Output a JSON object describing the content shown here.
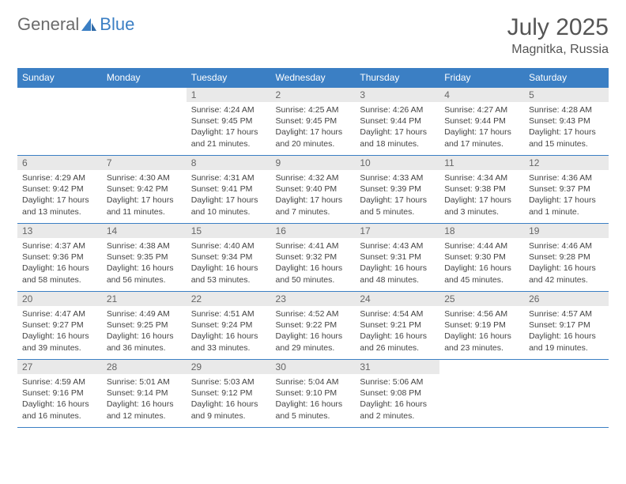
{
  "brand": {
    "part1": "General",
    "part2": "Blue"
  },
  "title": "July 2025",
  "location": "Magnitka, Russia",
  "colors": {
    "header_bg": "#3b7fc4",
    "header_text": "#ffffff",
    "daynum_bg": "#e9e9e9",
    "daynum_text": "#666666",
    "body_text": "#444444",
    "border": "#3b7fc4",
    "page_bg": "#ffffff",
    "title_color": "#555555"
  },
  "typography": {
    "title_fontsize": 30,
    "location_fontsize": 16,
    "header_fontsize": 12,
    "daynum_fontsize": 12,
    "body_fontsize": 10.5
  },
  "day_headers": [
    "Sunday",
    "Monday",
    "Tuesday",
    "Wednesday",
    "Thursday",
    "Friday",
    "Saturday"
  ],
  "weeks": [
    [
      null,
      null,
      {
        "n": "1",
        "sunrise": "4:24 AM",
        "sunset": "9:45 PM",
        "daylight": "17 hours and 21 minutes."
      },
      {
        "n": "2",
        "sunrise": "4:25 AM",
        "sunset": "9:45 PM",
        "daylight": "17 hours and 20 minutes."
      },
      {
        "n": "3",
        "sunrise": "4:26 AM",
        "sunset": "9:44 PM",
        "daylight": "17 hours and 18 minutes."
      },
      {
        "n": "4",
        "sunrise": "4:27 AM",
        "sunset": "9:44 PM",
        "daylight": "17 hours and 17 minutes."
      },
      {
        "n": "5",
        "sunrise": "4:28 AM",
        "sunset": "9:43 PM",
        "daylight": "17 hours and 15 minutes."
      }
    ],
    [
      {
        "n": "6",
        "sunrise": "4:29 AM",
        "sunset": "9:42 PM",
        "daylight": "17 hours and 13 minutes."
      },
      {
        "n": "7",
        "sunrise": "4:30 AM",
        "sunset": "9:42 PM",
        "daylight": "17 hours and 11 minutes."
      },
      {
        "n": "8",
        "sunrise": "4:31 AM",
        "sunset": "9:41 PM",
        "daylight": "17 hours and 10 minutes."
      },
      {
        "n": "9",
        "sunrise": "4:32 AM",
        "sunset": "9:40 PM",
        "daylight": "17 hours and 7 minutes."
      },
      {
        "n": "10",
        "sunrise": "4:33 AM",
        "sunset": "9:39 PM",
        "daylight": "17 hours and 5 minutes."
      },
      {
        "n": "11",
        "sunrise": "4:34 AM",
        "sunset": "9:38 PM",
        "daylight": "17 hours and 3 minutes."
      },
      {
        "n": "12",
        "sunrise": "4:36 AM",
        "sunset": "9:37 PM",
        "daylight": "17 hours and 1 minute."
      }
    ],
    [
      {
        "n": "13",
        "sunrise": "4:37 AM",
        "sunset": "9:36 PM",
        "daylight": "16 hours and 58 minutes."
      },
      {
        "n": "14",
        "sunrise": "4:38 AM",
        "sunset": "9:35 PM",
        "daylight": "16 hours and 56 minutes."
      },
      {
        "n": "15",
        "sunrise": "4:40 AM",
        "sunset": "9:34 PM",
        "daylight": "16 hours and 53 minutes."
      },
      {
        "n": "16",
        "sunrise": "4:41 AM",
        "sunset": "9:32 PM",
        "daylight": "16 hours and 50 minutes."
      },
      {
        "n": "17",
        "sunrise": "4:43 AM",
        "sunset": "9:31 PM",
        "daylight": "16 hours and 48 minutes."
      },
      {
        "n": "18",
        "sunrise": "4:44 AM",
        "sunset": "9:30 PM",
        "daylight": "16 hours and 45 minutes."
      },
      {
        "n": "19",
        "sunrise": "4:46 AM",
        "sunset": "9:28 PM",
        "daylight": "16 hours and 42 minutes."
      }
    ],
    [
      {
        "n": "20",
        "sunrise": "4:47 AM",
        "sunset": "9:27 PM",
        "daylight": "16 hours and 39 minutes."
      },
      {
        "n": "21",
        "sunrise": "4:49 AM",
        "sunset": "9:25 PM",
        "daylight": "16 hours and 36 minutes."
      },
      {
        "n": "22",
        "sunrise": "4:51 AM",
        "sunset": "9:24 PM",
        "daylight": "16 hours and 33 minutes."
      },
      {
        "n": "23",
        "sunrise": "4:52 AM",
        "sunset": "9:22 PM",
        "daylight": "16 hours and 29 minutes."
      },
      {
        "n": "24",
        "sunrise": "4:54 AM",
        "sunset": "9:21 PM",
        "daylight": "16 hours and 26 minutes."
      },
      {
        "n": "25",
        "sunrise": "4:56 AM",
        "sunset": "9:19 PM",
        "daylight": "16 hours and 23 minutes."
      },
      {
        "n": "26",
        "sunrise": "4:57 AM",
        "sunset": "9:17 PM",
        "daylight": "16 hours and 19 minutes."
      }
    ],
    [
      {
        "n": "27",
        "sunrise": "4:59 AM",
        "sunset": "9:16 PM",
        "daylight": "16 hours and 16 minutes."
      },
      {
        "n": "28",
        "sunrise": "5:01 AM",
        "sunset": "9:14 PM",
        "daylight": "16 hours and 12 minutes."
      },
      {
        "n": "29",
        "sunrise": "5:03 AM",
        "sunset": "9:12 PM",
        "daylight": "16 hours and 9 minutes."
      },
      {
        "n": "30",
        "sunrise": "5:04 AM",
        "sunset": "9:10 PM",
        "daylight": "16 hours and 5 minutes."
      },
      {
        "n": "31",
        "sunrise": "5:06 AM",
        "sunset": "9:08 PM",
        "daylight": "16 hours and 2 minutes."
      },
      null,
      null
    ]
  ],
  "labels": {
    "sunrise": "Sunrise:",
    "sunset": "Sunset:",
    "daylight": "Daylight:"
  }
}
